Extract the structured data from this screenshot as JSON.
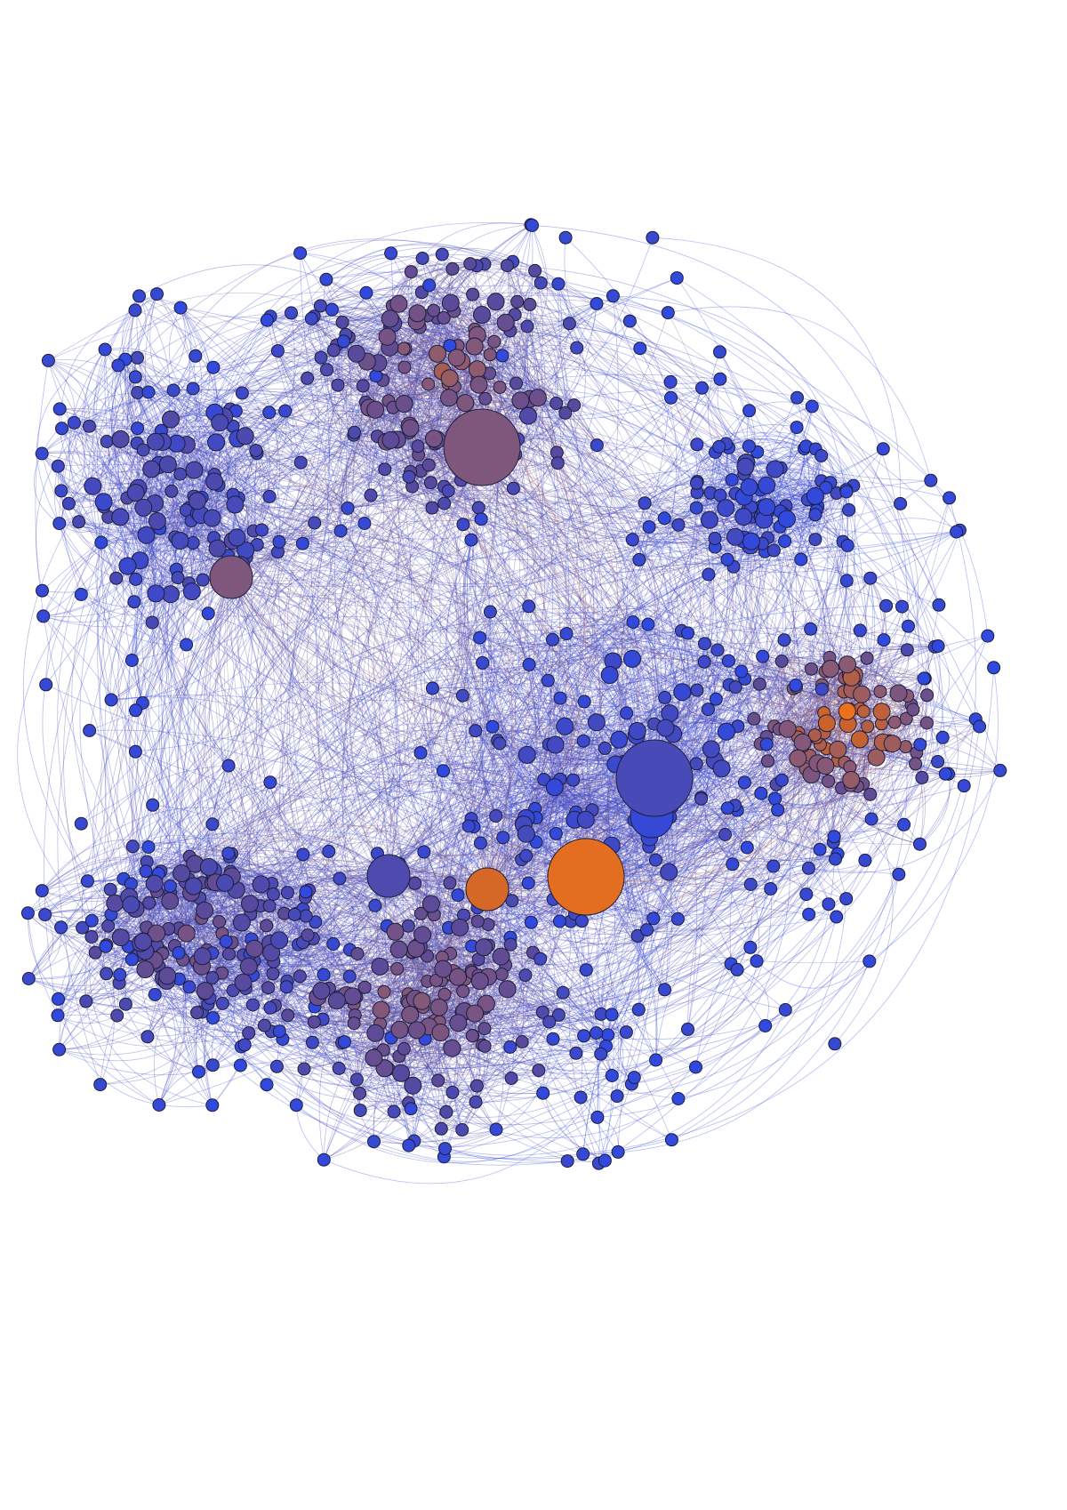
{
  "graph": {
    "type": "force-directed network",
    "edge_style": "curved",
    "palette": {
      "background": "#ffffff",
      "node_outline": "#1e1e3a",
      "low": "#2f49e0",
      "mid": "#5a4a9a",
      "mauve": "#8a5a74",
      "high": "#c8622e",
      "hot": "#f07418"
    },
    "legend": "none",
    "labels": "none",
    "clusters": [
      {
        "name": "top-center",
        "tone": 0.55,
        "size": 150,
        "hub_count": 1
      },
      {
        "name": "top-left",
        "tone": 0.25,
        "size": 120,
        "hub_count": 1
      },
      {
        "name": "middle-right",
        "tone": 0.12,
        "size": 80,
        "hub_count": 0
      },
      {
        "name": "right",
        "tone": 0.85,
        "size": 110,
        "hub_count": 0
      },
      {
        "name": "center",
        "tone": 0.15,
        "size": 150,
        "hub_count": 3
      },
      {
        "name": "bottom-left",
        "tone": 0.4,
        "size": 150,
        "hub_count": 2
      },
      {
        "name": "bottom-center",
        "tone": 0.5,
        "size": 150,
        "hub_count": 2
      }
    ],
    "hubs": [
      {
        "cluster": "top-center",
        "tone": 0.55,
        "level": "largest"
      },
      {
        "cluster": "top-left",
        "tone": 0.55,
        "level": "large"
      },
      {
        "cluster": "center",
        "tone": 0.2,
        "level": "largest"
      },
      {
        "cluster": "center",
        "tone": 0.95,
        "level": "largest"
      },
      {
        "cluster": "center",
        "tone": 0.05,
        "level": "large"
      },
      {
        "cluster": "bottom-left",
        "tone": 0.25,
        "level": "large"
      },
      {
        "cluster": "bottom-center",
        "tone": 0.9,
        "level": "large"
      }
    ]
  }
}
